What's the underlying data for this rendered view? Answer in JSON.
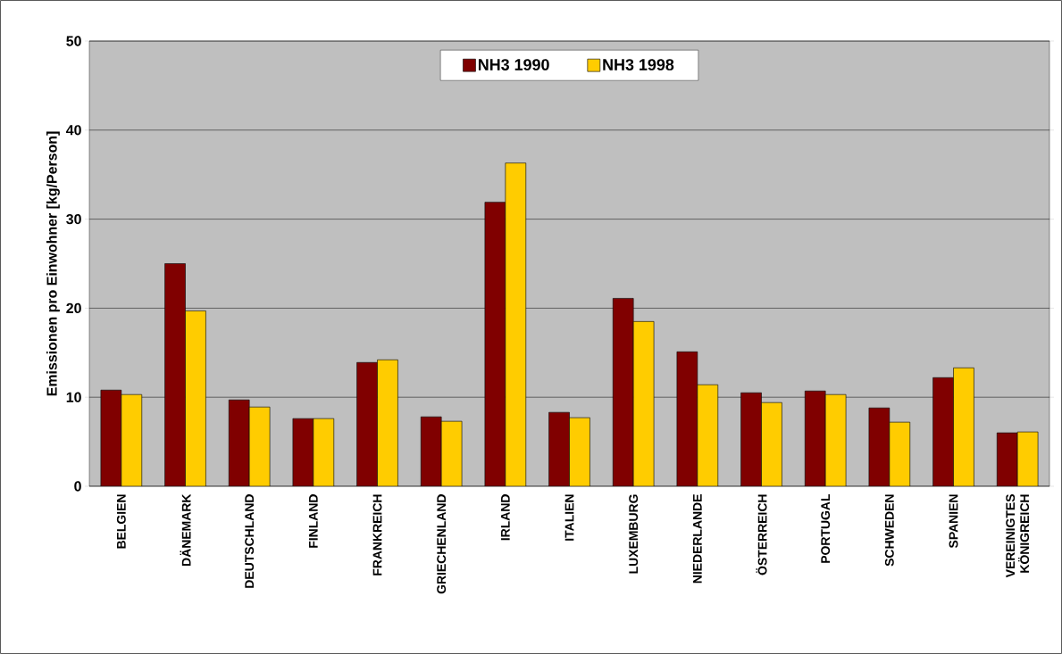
{
  "chart_data": {
    "type": "bar",
    "ylabel": "Emissionen pro Einwohner [kg/Person]",
    "categories": [
      "BELGIEN",
      "DÄNEMARK",
      "DEUTSCHLAND",
      "FINLAND",
      "FRANKREICH",
      "GRIECHENLAND",
      "IRLAND",
      "ITALIEN",
      "LUXEMBURG",
      "NIEDERLANDE",
      "ÖSTERREICH",
      "PORTUGAL",
      "SCHWEDEN",
      "SPANIEN",
      "VEREINIGTES KÖNIGREICH"
    ],
    "series": [
      {
        "name": "NH3 1990",
        "color": "#800000",
        "values": [
          10.8,
          25.0,
          9.7,
          7.6,
          13.9,
          7.8,
          31.9,
          8.3,
          21.1,
          15.1,
          10.5,
          10.7,
          8.8,
          12.2,
          6.0
        ]
      },
      {
        "name": "NH3 1998",
        "color": "#ffcc00",
        "values": [
          10.3,
          19.7,
          8.9,
          7.6,
          14.2,
          7.3,
          36.3,
          7.7,
          18.5,
          11.4,
          9.4,
          10.3,
          7.2,
          13.3,
          6.1
        ]
      }
    ],
    "ylim": [
      0,
      50
    ],
    "yticks": [
      0,
      10,
      20,
      30,
      40,
      50
    ],
    "grid": "y",
    "legend": "top"
  }
}
